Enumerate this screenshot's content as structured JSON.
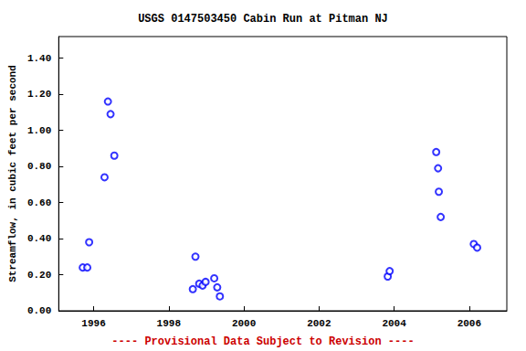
{
  "chart_data": {
    "type": "scatter",
    "title": "USGS 0147503450 Cabin Run at Pitman NJ",
    "y_label": "Streamflow, in cubic feet per second",
    "annotation": "---- Provisional Data Subject to Revision ----",
    "x": [
      1995.71,
      1995.83,
      1995.88,
      1996.29,
      1996.38,
      1996.45,
      1996.55,
      1998.64,
      1998.71,
      1998.81,
      1998.9,
      1998.98,
      1999.21,
      1999.29,
      1999.36,
      2003.83,
      2003.88,
      2005.12,
      2005.17,
      2005.19,
      2005.24,
      2006.12,
      2006.21
    ],
    "values": [
      0.24,
      0.24,
      0.38,
      0.74,
      1.16,
      1.09,
      0.86,
      0.12,
      0.3,
      0.15,
      0.14,
      0.16,
      0.18,
      0.13,
      0.08,
      0.19,
      0.22,
      0.88,
      0.79,
      0.66,
      0.52,
      0.37,
      0.35
    ],
    "color": "#0000ff",
    "marker": "open_circle",
    "xlim": [
      1995.07,
      2007.0
    ],
    "xticks": [
      1996,
      1998,
      2000,
      2002,
      2004,
      2006
    ],
    "ylim": [
      0,
      1.52
    ],
    "yticks": [
      {
        "value": 0,
        "label": "0.00"
      },
      {
        "value": 0.2,
        "label": "0.20"
      },
      {
        "value": 0.4,
        "label": "0.40"
      },
      {
        "value": 0.6,
        "label": "0.60"
      },
      {
        "value": 0.8,
        "label": "0.80"
      },
      {
        "value": 1.0,
        "label": "1.00"
      },
      {
        "value": 1.2,
        "label": "1.20"
      },
      {
        "value": 1.4,
        "label": "1.40"
      }
    ],
    "grid": false
  }
}
